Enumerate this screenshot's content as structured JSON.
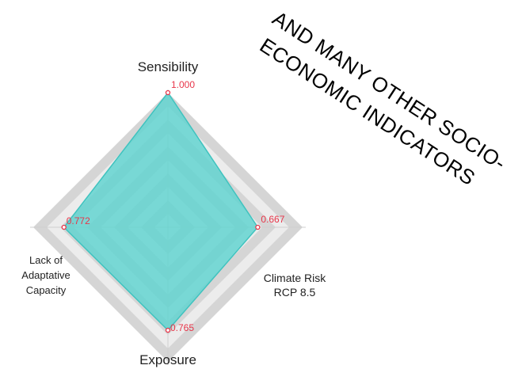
{
  "chart_data": {
    "type": "radar",
    "axes": [
      {
        "label_lines": [
          "Sensibility"
        ],
        "value": 1.0,
        "value_label": "1.000"
      },
      {
        "label_lines": [
          "Climate Risk",
          "RCP 8.5"
        ],
        "value": 0.667,
        "value_label": "0.667"
      },
      {
        "label_lines": [
          "Exposure"
        ],
        "value": 0.765,
        "value_label": "0.765"
      },
      {
        "label_lines": [
          "Lack of",
          "Adaptative",
          "Capacity"
        ],
        "value": 0.772,
        "value_label": "0.772"
      }
    ],
    "range": [
      0,
      1
    ],
    "grid": true,
    "colors": {
      "fill": "#5ed3cf",
      "stroke": "#3fc3bf",
      "band_dark": "#d5d5d5",
      "band_light": "#ececec",
      "value_text": "#e8364a"
    }
  },
  "annotation": {
    "line1": "AND MANY OTHER SOCIO-",
    "line2": "ECONOMIC INDICATORS"
  }
}
